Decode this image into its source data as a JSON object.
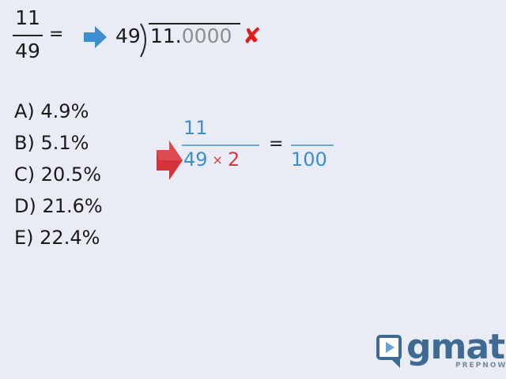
{
  "fraction": {
    "numerator": "11",
    "denominator": "49",
    "equals": "="
  },
  "long_division": {
    "divisor": "49",
    "dividend_main": "11.",
    "dividend_zeros": "0000",
    "mark": "✘"
  },
  "choices": [
    {
      "label": "A) 4.9%"
    },
    {
      "label": "B) 5.1%"
    },
    {
      "label": "C) 20.5%"
    },
    {
      "label": "D) 21.6%"
    },
    {
      "label": "E) 22.4%"
    }
  ],
  "equation": {
    "numerator": "11",
    "den_left": "49",
    "times": "×",
    "den_right": "2",
    "equals": "=",
    "rhs_denominator": "100"
  },
  "logo": {
    "word": "gmat",
    "sub": "PREPNOW"
  },
  "colors": {
    "background": "#e9ecf4",
    "blue": "#3b8fcf",
    "red": "#d23a3a",
    "cross": "#e11c1c",
    "logo": "#3d6b93"
  },
  "icons": [
    "blue-arrow-icon",
    "cross-icon",
    "red-arrow-icon",
    "logo-play-icon"
  ]
}
